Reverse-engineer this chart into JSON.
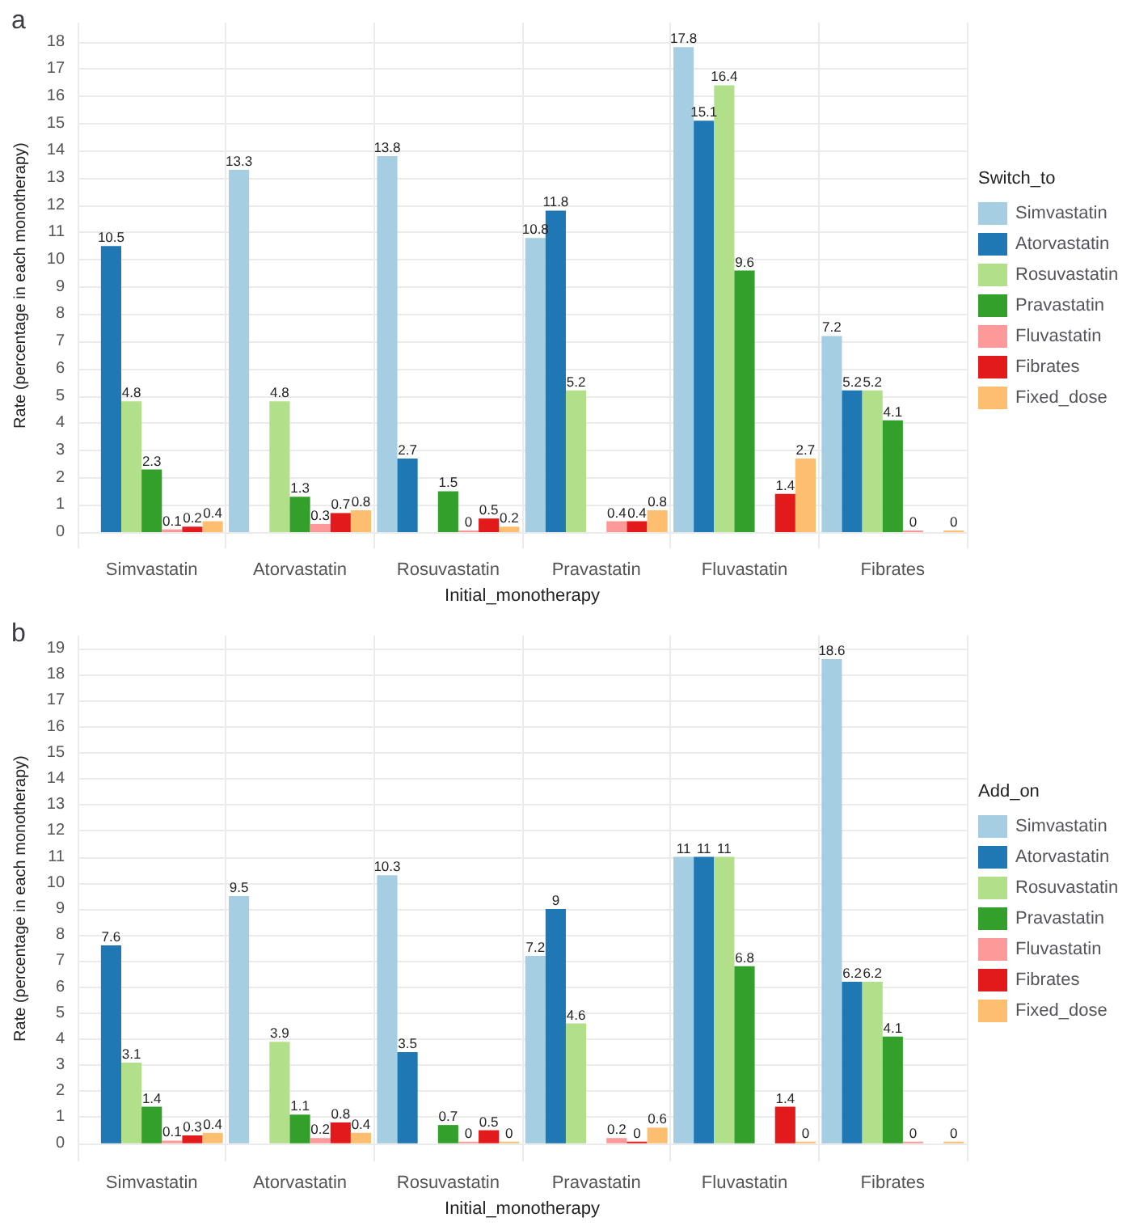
{
  "chart_data": [
    {
      "type": "bar",
      "annotations": [
        "a"
      ],
      "xlabel": "Initial_monotherapy",
      "ylabel": "Rate (percentage in each monotherapy)",
      "legend_title": "Switch_to",
      "legend": "right",
      "grid": true,
      "data_labels": true,
      "categories": [
        "Simvastatin",
        "Atorvastatin",
        "Rosuvastatin",
        "Pravastatin",
        "Fluvastatin",
        "Fibrates"
      ],
      "ylim": [
        -0.6,
        18.7
      ],
      "yticks": [
        0,
        1,
        2,
        3,
        4,
        5,
        6,
        7,
        8,
        9,
        10,
        11,
        12,
        13,
        14,
        15,
        16,
        17,
        18
      ],
      "series": [
        {
          "name": "Simvastatin",
          "color": "#a6cee3",
          "values": [
            null,
            13.3,
            13.8,
            10.8,
            17.8,
            7.2
          ]
        },
        {
          "name": "Atorvastatin",
          "color": "#1f78b4",
          "values": [
            10.5,
            null,
            2.7,
            11.8,
            15.1,
            5.2
          ]
        },
        {
          "name": "Rosuvastatin",
          "color": "#b2df8a",
          "values": [
            4.8,
            4.8,
            null,
            5.2,
            16.4,
            5.2
          ]
        },
        {
          "name": "Pravastatin",
          "color": "#33a02c",
          "values": [
            2.3,
            1.3,
            1.5,
            null,
            9.6,
            4.1
          ]
        },
        {
          "name": "Fluvastatin",
          "color": "#fb9a99",
          "values": [
            0.1,
            0.3,
            0,
            0.4,
            null,
            0
          ]
        },
        {
          "name": "Fibrates",
          "color": "#e31a1c",
          "values": [
            0.2,
            0.7,
            0.5,
            0.4,
            1.4,
            null
          ]
        },
        {
          "name": "Fixed_dose",
          "color": "#fdbf6f",
          "values": [
            0.4,
            0.8,
            0.2,
            0.8,
            2.7,
            0
          ]
        }
      ]
    },
    {
      "type": "bar",
      "annotations": [
        "b"
      ],
      "xlabel": "Initial_monotherapy",
      "ylabel": "Rate (percentage in each monotherapy)",
      "legend_title": "Add_on",
      "legend": "right",
      "grid": true,
      "data_labels": true,
      "categories": [
        "Simvastatin",
        "Atorvastatin",
        "Rosuvastatin",
        "Pravastatin",
        "Fluvastatin",
        "Fibrates"
      ],
      "ylim": [
        -0.7,
        19.5
      ],
      "yticks": [
        0,
        1,
        2,
        3,
        4,
        5,
        6,
        7,
        8,
        9,
        10,
        11,
        12,
        13,
        14,
        15,
        16,
        17,
        18,
        19
      ],
      "series": [
        {
          "name": "Simvastatin",
          "color": "#a6cee3",
          "values": [
            null,
            9.5,
            10.3,
            7.2,
            11,
            18.6
          ]
        },
        {
          "name": "Atorvastatin",
          "color": "#1f78b4",
          "values": [
            7.6,
            null,
            3.5,
            9,
            11,
            6.2
          ]
        },
        {
          "name": "Rosuvastatin",
          "color": "#b2df8a",
          "values": [
            3.1,
            3.9,
            null,
            4.6,
            11,
            6.2
          ]
        },
        {
          "name": "Pravastatin",
          "color": "#33a02c",
          "values": [
            1.4,
            1.1,
            0.7,
            null,
            6.8,
            4.1
          ]
        },
        {
          "name": "Fluvastatin",
          "color": "#fb9a99",
          "values": [
            0.1,
            0.2,
            0,
            0.2,
            null,
            0
          ]
        },
        {
          "name": "Fibrates",
          "color": "#e31a1c",
          "values": [
            0.3,
            0.8,
            0.5,
            0,
            1.4,
            null
          ]
        },
        {
          "name": "Fixed_dose",
          "color": "#fdbf6f",
          "values": [
            0.4,
            0.4,
            0,
            0.6,
            0,
            0
          ]
        }
      ]
    }
  ]
}
